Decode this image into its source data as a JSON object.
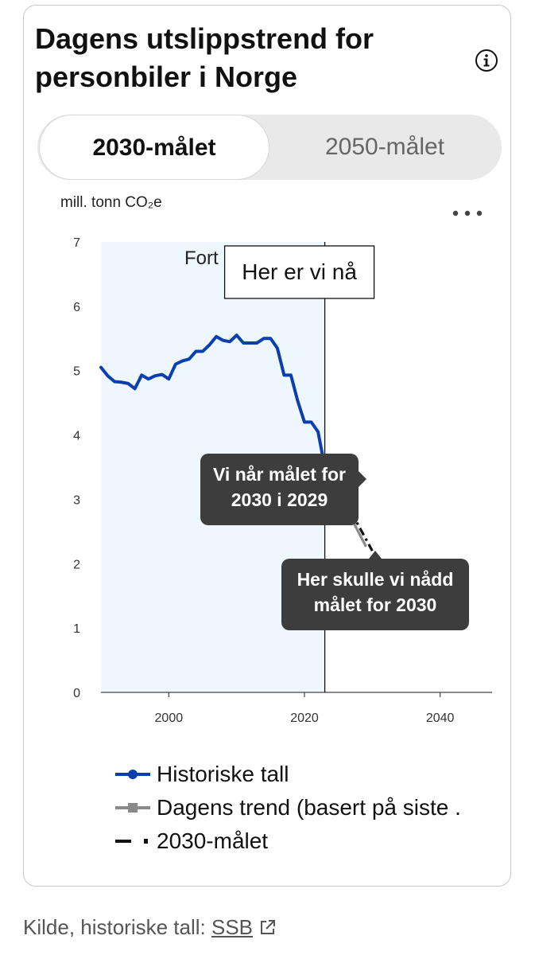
{
  "card": {
    "title": "Dagens utslippstrend for personbiler i Norge",
    "info_icon": "info-circle-icon",
    "tabs": [
      {
        "label": "2030-målet",
        "selected": true
      },
      {
        "label": "2050-målet",
        "selected": false
      }
    ],
    "unit_label": "mill. tonn CO₂e",
    "more_icon": "more-horizontal-icon"
  },
  "chart_data": {
    "type": "line",
    "title": "Dagens utslippstrend for personbiler i Norge",
    "ylabel": "mill. tonn CO₂e",
    "xlabel": "",
    "xlim": [
      1990,
      2050
    ],
    "ylim": [
      0,
      7
    ],
    "xticks": [
      2000,
      2020,
      2040
    ],
    "yticks": [
      0,
      1,
      2,
      3,
      4,
      5,
      6,
      7
    ],
    "grid": false,
    "legend_position": "bottom",
    "shaded_region": {
      "x": [
        1990,
        2023
      ],
      "label": "Fort",
      "color": "#eef7fd"
    },
    "now_marker": {
      "x": 2023,
      "label": "Her er vi nå"
    },
    "series": [
      {
        "name": "Historiske tall",
        "color": "#0b3fae",
        "style": "solid",
        "x": [
          1990,
          1991,
          1992,
          1993,
          1994,
          1995,
          1996,
          1997,
          1998,
          1999,
          2000,
          2001,
          2002,
          2003,
          2004,
          2005,
          2006,
          2007,
          2008,
          2009,
          2010,
          2011,
          2012,
          2013,
          2014,
          2015,
          2016,
          2017,
          2018,
          2019,
          2020,
          2021,
          2022,
          2023
        ],
        "values": [
          5.05,
          4.92,
          4.83,
          4.82,
          4.8,
          4.72,
          4.93,
          4.87,
          4.92,
          4.94,
          4.87,
          5.1,
          5.15,
          5.18,
          5.3,
          5.3,
          5.4,
          5.53,
          5.47,
          5.45,
          5.55,
          5.43,
          5.43,
          5.43,
          5.5,
          5.5,
          5.35,
          4.93,
          4.93,
          4.53,
          4.2,
          4.2,
          4.05,
          3.5
        ]
      },
      {
        "name": "Dagens trend (basert på siste .",
        "color": "#8a8a8a",
        "style": "solid",
        "x": [
          2023,
          2029
        ],
        "values": [
          3.5,
          2.28
        ]
      },
      {
        "name": "2030-målet",
        "color": "#111111",
        "style": "dash-dot",
        "x": [
          2023,
          2030
        ],
        "values": [
          3.55,
          2.2
        ]
      }
    ],
    "annotations": [
      {
        "text": "Vi når målet for 2030 i 2029",
        "x": 2029,
        "y": 2.28
      },
      {
        "text": "Her skulle vi nådd målet for 2030",
        "x": 2030,
        "y": 2.2
      }
    ]
  },
  "legend": {
    "items": [
      {
        "label": "Historiske tall"
      },
      {
        "label": "Dagens trend (basert på siste ."
      },
      {
        "label": "2030-målet"
      }
    ]
  },
  "source": {
    "prefix": "Kilde, historiske tall: ",
    "link": "SSB",
    "link_icon": "external-link-icon"
  }
}
